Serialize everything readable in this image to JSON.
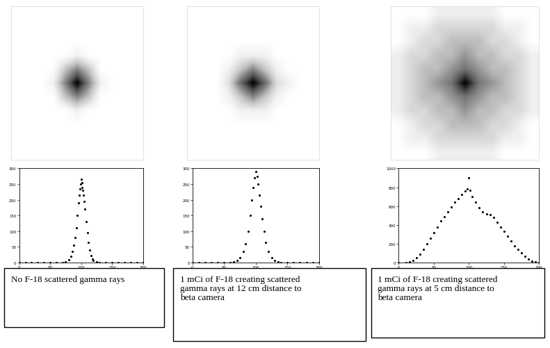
{
  "chart_data": [
    {
      "type": "scatter",
      "caption": "No F-18 scattered gamma rays",
      "image": {
        "type": "heatmap",
        "cells": [
          [
            0,
            0,
            0,
            0,
            0,
            0,
            0,
            0,
            0,
            0,
            0
          ],
          [
            0,
            0,
            0,
            0,
            0,
            0,
            0,
            0,
            0,
            0,
            0
          ],
          [
            0,
            0,
            0,
            0,
            0,
            0,
            0,
            0,
            0,
            0,
            0
          ],
          [
            0,
            0,
            0,
            0,
            0,
            1,
            0,
            0,
            0,
            0,
            0
          ],
          [
            0,
            0,
            0,
            0,
            3,
            5,
            3,
            0,
            0,
            0,
            0
          ],
          [
            0,
            0,
            0,
            1,
            5,
            9,
            5,
            1,
            0,
            0,
            0
          ],
          [
            0,
            0,
            0,
            0,
            3,
            5,
            3,
            0,
            0,
            0,
            0
          ],
          [
            0,
            0,
            0,
            0,
            0,
            1,
            0,
            0,
            0,
            0,
            0
          ],
          [
            0,
            0,
            0,
            0,
            0,
            0,
            0,
            0,
            0,
            0,
            0
          ],
          [
            0,
            0,
            0,
            0,
            0,
            0,
            0,
            0,
            0,
            0,
            0
          ],
          [
            0,
            0,
            0,
            0,
            0,
            0,
            0,
            0,
            0,
            0,
            0
          ]
        ]
      },
      "x": [
        0,
        10,
        20,
        30,
        40,
        50,
        60,
        70,
        75,
        80,
        84,
        86,
        88,
        90,
        92,
        94,
        96,
        97,
        98,
        99,
        100,
        101,
        102,
        103,
        104,
        105,
        106,
        108,
        110,
        112,
        114,
        116,
        118,
        120,
        125,
        130,
        140,
        150,
        160,
        170,
        180,
        190,
        200
      ],
      "values": [
        0,
        0,
        0,
        0,
        0,
        0,
        0,
        0,
        2,
        8,
        20,
        35,
        55,
        80,
        110,
        150,
        190,
        215,
        235,
        250,
        265,
        255,
        240,
        230,
        215,
        195,
        170,
        130,
        95,
        65,
        40,
        22,
        12,
        6,
        2,
        0,
        0,
        0,
        0,
        0,
        0,
        0,
        0
      ],
      "xlim": [
        0,
        200
      ],
      "xticks": [
        0,
        50,
        100,
        150,
        200
      ],
      "ylim": [
        0,
        300
      ],
      "yticks": [
        0,
        50,
        100,
        150,
        200,
        250,
        300
      ],
      "color": "#000000",
      "marker": "dot"
    },
    {
      "type": "scatter",
      "caption": "1 mCi of F-18 creating scattered gamma rays at 12 cm distance to beta camera",
      "image": {
        "type": "heatmap",
        "cells": [
          [
            0,
            0,
            0,
            0,
            0,
            0,
            0,
            0,
            0,
            0,
            0
          ],
          [
            0,
            0,
            0,
            0,
            0,
            0,
            0,
            0,
            0,
            0,
            0
          ],
          [
            0,
            0,
            0,
            0,
            0,
            0,
            0,
            0,
            0,
            0,
            0
          ],
          [
            0,
            0,
            0,
            0,
            1,
            1,
            1,
            0,
            0,
            0,
            0
          ],
          [
            0,
            0,
            0,
            1,
            3,
            5,
            3,
            1,
            0,
            0,
            0
          ],
          [
            0,
            0,
            0,
            2,
            6,
            9,
            6,
            2,
            1,
            0,
            0
          ],
          [
            0,
            0,
            0,
            1,
            3,
            5,
            3,
            1,
            0,
            0,
            0
          ],
          [
            0,
            0,
            0,
            0,
            1,
            1,
            1,
            0,
            0,
            0,
            0
          ],
          [
            0,
            0,
            0,
            0,
            0,
            0,
            0,
            0,
            0,
            0,
            0
          ],
          [
            0,
            0,
            0,
            0,
            0,
            0,
            0,
            0,
            0,
            0,
            0
          ],
          [
            0,
            0,
            0,
            0,
            0,
            0,
            0,
            0,
            0,
            0,
            0
          ]
        ]
      },
      "x": [
        0,
        10,
        20,
        30,
        40,
        50,
        60,
        65,
        70,
        75,
        80,
        84,
        88,
        91,
        94,
        96,
        98,
        100,
        102,
        104,
        106,
        108,
        110,
        113,
        116,
        120,
        125,
        130,
        135,
        140,
        150,
        160,
        170,
        180,
        190,
        200
      ],
      "values": [
        0,
        0,
        0,
        0,
        0,
        0,
        0,
        2,
        6,
        15,
        35,
        60,
        100,
        150,
        200,
        240,
        270,
        290,
        275,
        250,
        215,
        180,
        140,
        100,
        65,
        35,
        15,
        6,
        2,
        0,
        0,
        0,
        0,
        0,
        0,
        0
      ],
      "xlim": [
        0,
        200
      ],
      "xticks": [
        0,
        50,
        100,
        150,
        200
      ],
      "ylim": [
        0,
        300
      ],
      "yticks": [
        0,
        50,
        100,
        150,
        200,
        250,
        300
      ],
      "color": "#000000",
      "marker": "dot"
    },
    {
      "type": "scatter",
      "caption": "1 mCi of F-18 creating scattered gamma rays at 5 cm distance to beta camera",
      "image": {
        "type": "heatmap",
        "cells": [
          [
            0,
            0,
            0,
            1,
            1,
            1,
            1,
            1,
            0,
            0,
            0
          ],
          [
            0,
            1,
            1,
            2,
            2,
            2,
            2,
            2,
            1,
            1,
            0
          ],
          [
            0,
            1,
            2,
            2,
            3,
            3,
            3,
            2,
            2,
            1,
            0
          ],
          [
            1,
            2,
            2,
            3,
            3,
            4,
            3,
            3,
            2,
            2,
            1
          ],
          [
            1,
            2,
            3,
            3,
            4,
            5,
            4,
            3,
            3,
            2,
            1
          ],
          [
            1,
            2,
            3,
            4,
            5,
            8,
            5,
            4,
            3,
            2,
            1
          ],
          [
            1,
            2,
            3,
            3,
            4,
            5,
            4,
            3,
            3,
            2,
            1
          ],
          [
            1,
            2,
            2,
            3,
            3,
            4,
            3,
            3,
            2,
            2,
            1
          ],
          [
            0,
            1,
            2,
            2,
            3,
            3,
            3,
            2,
            2,
            1,
            0
          ],
          [
            0,
            1,
            1,
            2,
            2,
            2,
            2,
            2,
            1,
            1,
            0
          ],
          [
            0,
            0,
            0,
            1,
            1,
            1,
            1,
            1,
            0,
            0,
            0
          ]
        ]
      },
      "x": [
        0,
        10,
        15,
        20,
        25,
        30,
        35,
        40,
        45,
        50,
        55,
        60,
        65,
        70,
        75,
        80,
        85,
        90,
        95,
        98,
        100,
        102,
        105,
        110,
        115,
        120,
        125,
        130,
        135,
        140,
        145,
        150,
        155,
        160,
        165,
        170,
        175,
        180,
        185,
        190,
        195,
        200
      ],
      "values": [
        0,
        0,
        5,
        20,
        50,
        90,
        140,
        200,
        260,
        320,
        380,
        440,
        490,
        540,
        590,
        640,
        680,
        720,
        760,
        780,
        900,
        770,
        700,
        640,
        580,
        540,
        520,
        510,
        480,
        430,
        380,
        330,
        280,
        230,
        180,
        140,
        100,
        65,
        35,
        15,
        5,
        0
      ],
      "xlim": [
        0,
        200
      ],
      "xticks": [
        0,
        50,
        100,
        150,
        200
      ],
      "ylim": [
        0,
        1000
      ],
      "yticks": [
        0,
        200,
        400,
        600,
        800,
        1000
      ],
      "color": "#000000",
      "marker": "dot"
    }
  ]
}
